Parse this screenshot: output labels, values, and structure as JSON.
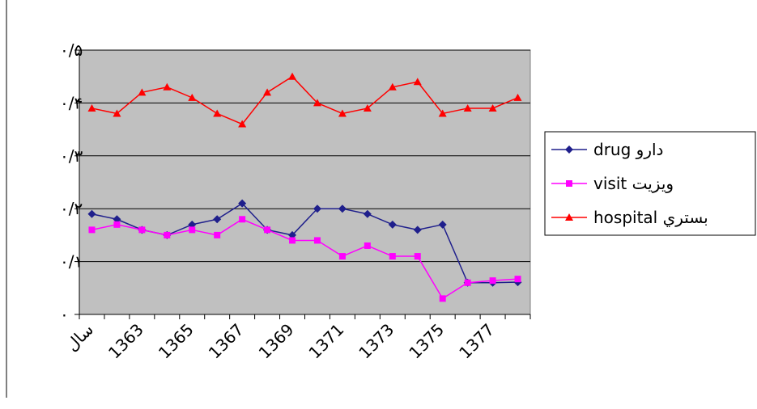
{
  "chart_data": {
    "type": "line",
    "categories": [
      "سال",
      null,
      "1363",
      null,
      "1365",
      null,
      "1367",
      null,
      "1369",
      null,
      "1371",
      null,
      "1373",
      null,
      "1375",
      null,
      "1377",
      null
    ],
    "series": [
      {
        "name": "drug دارو",
        "color": "#1f1f8c",
        "marker": "diamond",
        "values": [
          0.19,
          0.18,
          0.16,
          0.15,
          0.17,
          0.18,
          0.21,
          0.16,
          0.15,
          0.2,
          0.2,
          0.19,
          0.17,
          0.16,
          0.17,
          0.06,
          0.06,
          0.061
        ]
      },
      {
        "name": "visit ویزیت",
        "color": "#ff00ff",
        "marker": "square",
        "values": [
          0.16,
          0.17,
          0.16,
          0.15,
          0.16,
          0.15,
          0.18,
          0.16,
          0.14,
          0.14,
          0.11,
          0.13,
          0.11,
          0.11,
          0.03,
          0.06,
          0.064,
          0.067
        ]
      },
      {
        "name": "hospital بستري",
        "color": "#ff0000",
        "marker": "triangle",
        "values": [
          0.39,
          0.38,
          0.42,
          0.43,
          0.41,
          0.38,
          0.36,
          0.42,
          0.45,
          0.4,
          0.38,
          0.39,
          0.43,
          0.44,
          0.38,
          0.39,
          0.39,
          0.41
        ]
      }
    ],
    "ylim": [
      0,
      0.5
    ],
    "yticks": [
      {
        "value": 0,
        "label": "۰"
      },
      {
        "value": 0.1,
        "label": "۰/۱"
      },
      {
        "value": 0.2,
        "label": "۰/۲"
      },
      {
        "value": 0.3,
        "label": "۰/۳"
      },
      {
        "value": 0.4,
        "label": "۰/۴"
      },
      {
        "value": 0.5,
        "label": "۰/۵"
      }
    ],
    "grid": true,
    "legend": "right",
    "plot_background": "#c0c0c0"
  }
}
